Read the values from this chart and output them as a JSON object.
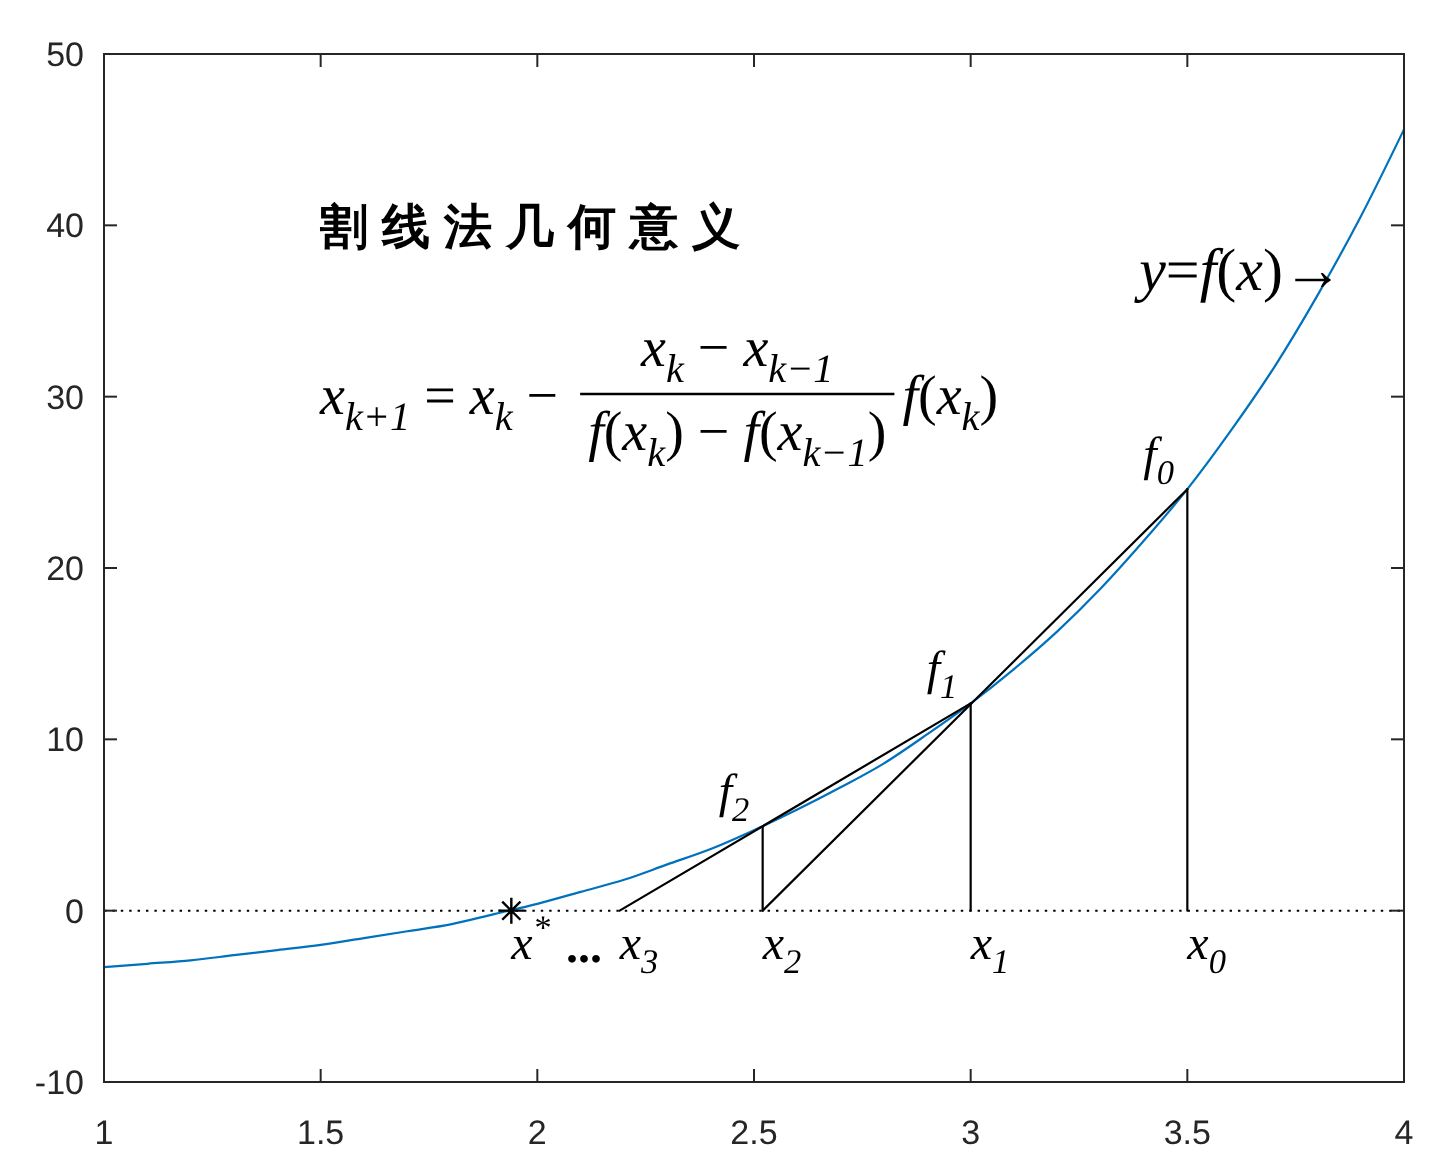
{
  "chart_data": {
    "type": "line",
    "title": "割线法几何意义",
    "xlim": [
      1,
      4
    ],
    "ylim": [
      -10,
      50
    ],
    "xticks": [
      1,
      1.5,
      2,
      2.5,
      3,
      3.5,
      4
    ],
    "yticks": [
      -10,
      0,
      10,
      20,
      30,
      40,
      50
    ],
    "series": [
      {
        "color": "#0072bd",
        "x": [
          1,
          1.1,
          1.2,
          1.3,
          1.4,
          1.5,
          1.6,
          1.7,
          1.8,
          1.9,
          2,
          2.1,
          2.2,
          2.3,
          2.4,
          2.5,
          2.6,
          2.7,
          2.8,
          2.9,
          3,
          3.1,
          3.2,
          3.3,
          3.4,
          3.5,
          3.6,
          3.7,
          3.8,
          3.9,
          4
        ],
        "values": [
          -3.3,
          -3.1,
          -2.9,
          -2.6,
          -2.3,
          -2.0,
          -1.6,
          -1.2,
          -0.8,
          -0.2,
          0.4,
          1.1,
          1.8,
          2.7,
          3.6,
          4.7,
          5.9,
          7.2,
          8.6,
          10.3,
          12.1,
          14.1,
          16.3,
          18.8,
          21.6,
          24.6,
          28.0,
          31.7,
          35.9,
          40.5,
          45.6
        ]
      },
      {
        "color": "#000000",
        "x": [
          2.52,
          3.5
        ],
        "values": [
          0,
          24.6
        ]
      },
      {
        "color": "#000000",
        "x": [
          2.19,
          3
        ],
        "values": [
          0,
          12.1
        ]
      },
      {
        "color": "#000000",
        "x": [
          3.5,
          3.5
        ],
        "values": [
          0,
          24.6
        ]
      },
      {
        "color": "#000000",
        "x": [
          3,
          3
        ],
        "values": [
          0,
          12.1
        ]
      },
      {
        "color": "#000000",
        "x": [
          2.52,
          2.52
        ],
        "values": [
          0,
          4.9
        ]
      },
      {
        "type": "scatter",
        "color": "#000000",
        "x": [
          1.94
        ],
        "values": [
          0
        ],
        "marker": "cross"
      }
    ],
    "ref_lines": [
      {
        "axis": "y",
        "value": 0,
        "color": "#000000",
        "line_style": "dotted"
      }
    ],
    "annotations": [
      "x$_{k+1}$ = x$_{k}$ −",
      "x$_{k}$ − x$_{k−1}$",
      "f(x$_{k}$) − f(x$_{k−1}$)",
      "f(x$_{k}$)",
      "...",
      {
        "text": "f$_{0}$",
        "x": 3.5,
        "y": 24.6
      },
      {
        "text": "f$_{1}$",
        "x": 3,
        "y": 12.1
      },
      {
        "text": "f$_{2}$",
        "x": 2.52,
        "y": 4.9
      },
      {
        "text": "x$_{0}$",
        "x": 3.5,
        "y": 0
      },
      {
        "text": "x$_{1}$",
        "x": 3,
        "y": 0
      },
      {
        "text": "x$_{2}$",
        "x": 2.52,
        "y": 0
      },
      {
        "text": "x$_{3}$",
        "x": 2.19,
        "y": 0
      },
      {
        "text": "x$^{*}$",
        "x": 1.94,
        "y": 0
      },
      {
        "text": "y=f(x)→",
        "x": 3.85,
        "y": 38.2
      }
    ]
  }
}
